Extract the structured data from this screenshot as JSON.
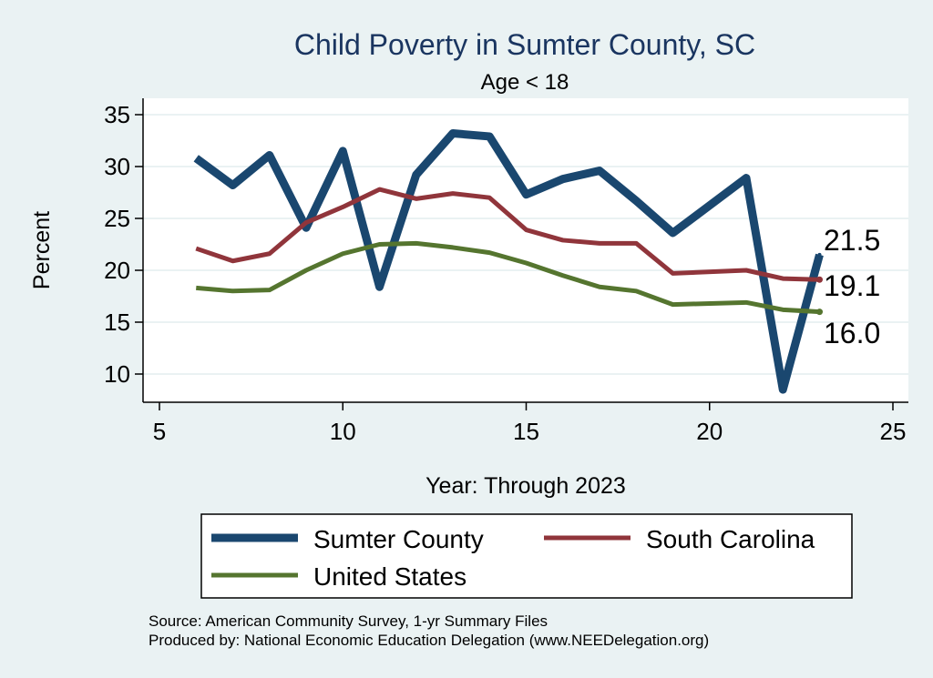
{
  "chart_data": {
    "type": "line",
    "title": "Child Poverty in Sumter County, SC",
    "subtitle": "Age < 18",
    "xlabel": "Year: Through 2023",
    "ylabel": "Percent",
    "xlim": [
      5,
      25
    ],
    "ylim": [
      7.5,
      36
    ],
    "xticks": [
      5,
      10,
      15,
      20,
      25
    ],
    "yticks": [
      10,
      15,
      20,
      25,
      30,
      35
    ],
    "grid": true,
    "legend_position": "bottom",
    "series": [
      {
        "name": "Sumter County",
        "color": "#1a476f",
        "x": [
          6,
          7,
          8,
          9,
          10,
          11,
          12,
          13,
          14,
          15,
          16,
          17,
          18,
          19,
          21,
          22,
          23
        ],
        "values": [
          30.8,
          28.2,
          31.1,
          24.1,
          31.5,
          18.4,
          29.2,
          33.2,
          32.9,
          27.3,
          28.8,
          29.6,
          26.7,
          23.6,
          28.9,
          8.5,
          21.5
        ]
      },
      {
        "name": "South Carolina",
        "color": "#90353b",
        "x": [
          6,
          7,
          8,
          9,
          10,
          11,
          12,
          13,
          14,
          15,
          16,
          17,
          18,
          19,
          21,
          22,
          23
        ],
        "values": [
          22.1,
          20.9,
          21.6,
          24.6,
          26.1,
          27.8,
          26.9,
          27.4,
          27.0,
          23.9,
          22.9,
          22.6,
          22.6,
          19.7,
          20.0,
          19.2,
          19.1
        ]
      },
      {
        "name": "United States",
        "color": "#55752f",
        "x": [
          6,
          7,
          8,
          9,
          10,
          11,
          12,
          13,
          14,
          15,
          16,
          17,
          18,
          19,
          21,
          22,
          23
        ],
        "values": [
          18.3,
          18.0,
          18.1,
          20.0,
          21.6,
          22.5,
          22.6,
          22.2,
          21.7,
          20.7,
          19.5,
          18.4,
          18.0,
          16.7,
          16.9,
          16.2,
          16.0
        ]
      }
    ],
    "end_labels": [
      "21.5",
      "19.1",
      "16.0"
    ]
  },
  "source_line1": "Source: American Community Survey, 1-yr Summary Files",
  "source_line2": "Produced by: National Economic Education Delegation (www.NEEDelegation.org)"
}
